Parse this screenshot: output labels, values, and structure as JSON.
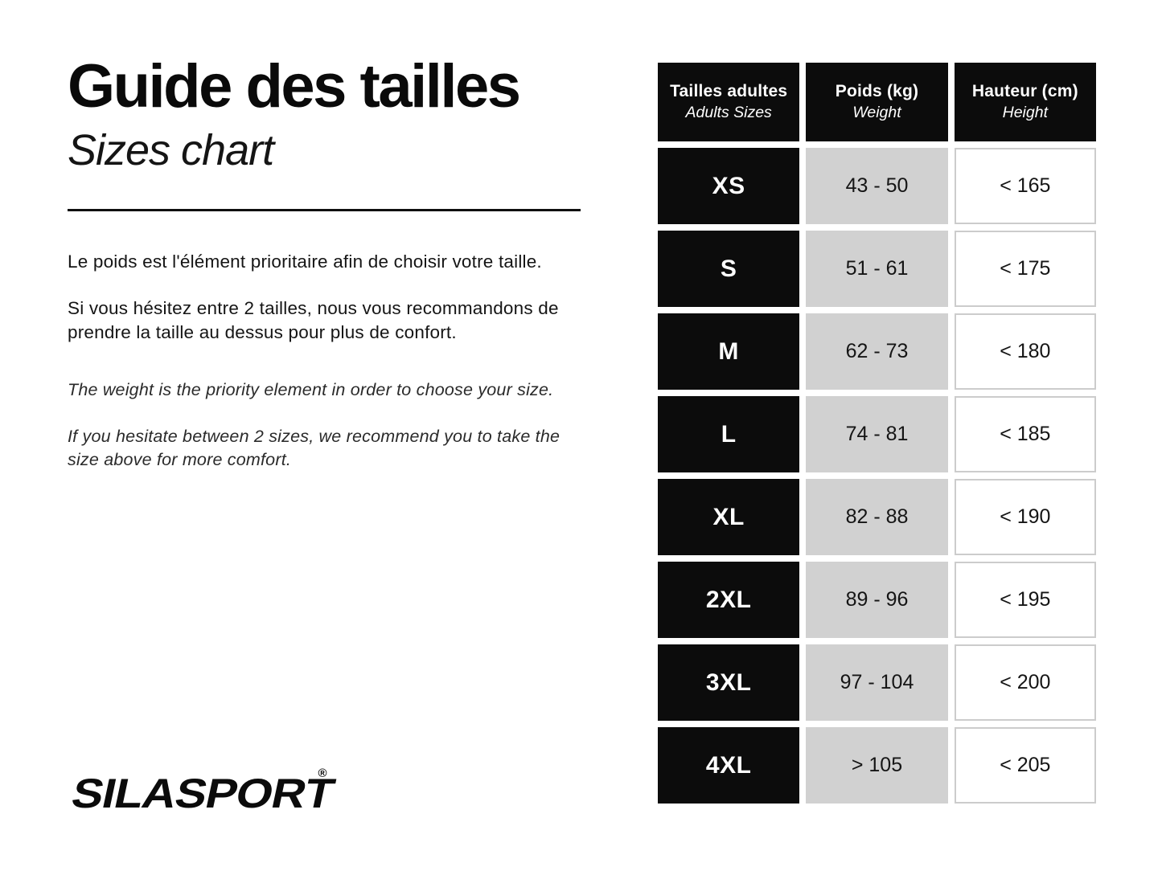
{
  "header": {
    "title_fr": "Guide des tailles",
    "title_en": "Sizes chart"
  },
  "intro": {
    "fr_1": "Le poids est l'élément prioritaire afin de choisir votre taille.",
    "fr_2": "Si vous hésitez entre 2 tailles, nous vous recommandons de prendre la taille au dessus pour plus de confort.",
    "en_1": "The weight is the priority element in order to choose your size.",
    "en_2": "If you hesitate between 2 sizes, we recommend you to take the size above for more comfort."
  },
  "brand": {
    "name": "SILASPORT",
    "registered_mark": "®"
  },
  "colors": {
    "cell_black": "#0c0c0c",
    "cell_gray": "#d1d1d1",
    "cell_white_border": "#cccccc",
    "text": "#111111",
    "background": "#ffffff"
  },
  "chart_data": {
    "type": "table",
    "title_fr": "Guide des tailles",
    "title_en": "Sizes chart",
    "columns": [
      {
        "header_fr": "Tailles adultes",
        "header_en": "Adults Sizes"
      },
      {
        "header_fr": "Poids (kg)",
        "header_en": "Weight"
      },
      {
        "header_fr": "Hauteur (cm)",
        "header_en": "Height"
      }
    ],
    "rows": [
      {
        "size": "XS",
        "weight_kg": "43 - 50",
        "height_cm": "< 165"
      },
      {
        "size": "S",
        "weight_kg": "51 - 61",
        "height_cm": "< 175"
      },
      {
        "size": "M",
        "weight_kg": "62 - 73",
        "height_cm": "< 180"
      },
      {
        "size": "L",
        "weight_kg": "74 - 81",
        "height_cm": "< 185"
      },
      {
        "size": "XL",
        "weight_kg": "82 - 88",
        "height_cm": "< 190"
      },
      {
        "size": "2XL",
        "weight_kg": "89 - 96",
        "height_cm": "< 195"
      },
      {
        "size": "3XL",
        "weight_kg": "97 - 104",
        "height_cm": "< 200"
      },
      {
        "size": "4XL",
        "weight_kg": "> 105",
        "height_cm": "< 205"
      }
    ]
  }
}
